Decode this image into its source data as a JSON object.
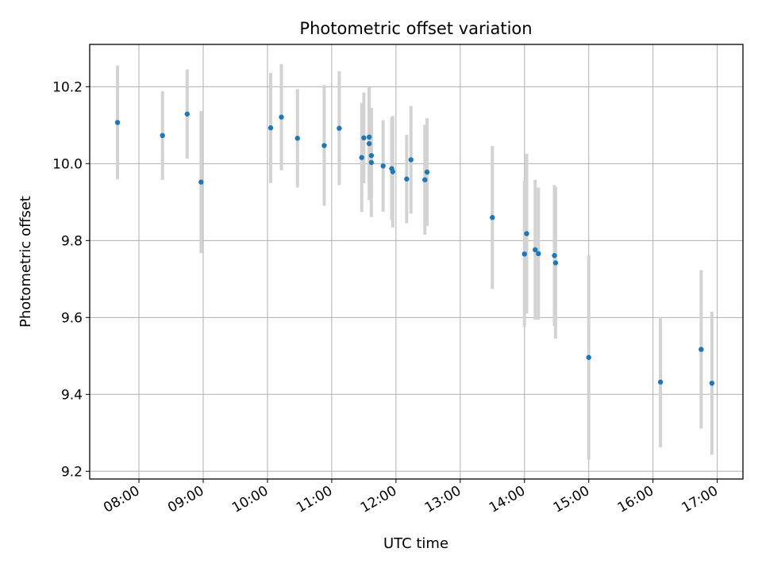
{
  "chart_data": {
    "type": "scatter",
    "title": "Photometric offset variation",
    "xlabel": "UTC time",
    "ylabel": "Photometric offset",
    "xlim": [
      "07:14",
      "17:24"
    ],
    "ylim": [
      9.18,
      10.31
    ],
    "x_ticks": [
      "08:00",
      "09:00",
      "10:00",
      "11:00",
      "12:00",
      "13:00",
      "14:00",
      "15:00",
      "16:00",
      "17:00"
    ],
    "y_ticks": [
      9.2,
      9.4,
      9.6,
      9.8,
      10.0,
      10.2
    ],
    "y_tick_labels": [
      "9.2",
      "9.4",
      "9.6",
      "9.8",
      "10.0",
      "10.2"
    ],
    "grid": true,
    "colors": {
      "points": "#1f77b4",
      "error_bars": "#d3d3d3",
      "grid": "#b0b0b0"
    },
    "series": [
      {
        "points": [
          {
            "x": "07:40",
            "y": 10.107,
            "yerr": 0.148
          },
          {
            "x": "08:22",
            "y": 10.073,
            "yerr": 0.115
          },
          {
            "x": "08:45",
            "y": 10.129,
            "yerr": 0.116
          },
          {
            "x": "08:58",
            "y": 9.952,
            "yerr": 0.185
          },
          {
            "x": "10:03",
            "y": 10.093,
            "yerr": 0.143
          },
          {
            "x": "10:13",
            "y": 10.121,
            "yerr": 0.138
          },
          {
            "x": "10:28",
            "y": 10.066,
            "yerr": 0.128
          },
          {
            "x": "10:53",
            "y": 10.047,
            "yerr": 0.157
          },
          {
            "x": "11:07",
            "y": 10.092,
            "yerr": 0.148
          },
          {
            "x": "11:28",
            "y": 10.016,
            "yerr": 0.142
          },
          {
            "x": "11:30",
            "y": 10.067,
            "yerr": 0.118
          },
          {
            "x": "11:35",
            "y": 10.069,
            "yerr": 0.128
          },
          {
            "x": "11:35",
            "y": 10.052,
            "yerr": 0.147
          },
          {
            "x": "11:37",
            "y": 10.003,
            "yerr": 0.142
          },
          {
            "x": "11:37",
            "y": 10.021,
            "yerr": 0.115
          },
          {
            "x": "11:48",
            "y": 9.994,
            "yerr": 0.119
          },
          {
            "x": "11:56",
            "y": 9.987,
            "yerr": 0.133
          },
          {
            "x": "11:57",
            "y": 9.979,
            "yerr": 0.145
          },
          {
            "x": "12:10",
            "y": 9.96,
            "yerr": 0.115
          },
          {
            "x": "12:14",
            "y": 10.01,
            "yerr": 0.14
          },
          {
            "x": "12:27",
            "y": 9.958,
            "yerr": 0.143
          },
          {
            "x": "12:29",
            "y": 9.978,
            "yerr": 0.14
          },
          {
            "x": "13:30",
            "y": 9.86,
            "yerr": 0.186
          },
          {
            "x": "14:00",
            "y": 9.765,
            "yerr": 0.19
          },
          {
            "x": "14:02",
            "y": 9.818,
            "yerr": 0.208
          },
          {
            "x": "14:10",
            "y": 9.776,
            "yerr": 0.182
          },
          {
            "x": "14:13",
            "y": 9.766,
            "yerr": 0.172
          },
          {
            "x": "14:28",
            "y": 9.761,
            "yerr": 0.183
          },
          {
            "x": "14:29",
            "y": 9.742,
            "yerr": 0.197
          },
          {
            "x": "15:00",
            "y": 9.496,
            "yerr": 0.266
          },
          {
            "x": "16:07",
            "y": 9.432,
            "yerr": 0.17
          },
          {
            "x": "16:45",
            "y": 9.517,
            "yerr": 0.206
          },
          {
            "x": "16:55",
            "y": 9.429,
            "yerr": 0.186
          }
        ]
      }
    ]
  }
}
